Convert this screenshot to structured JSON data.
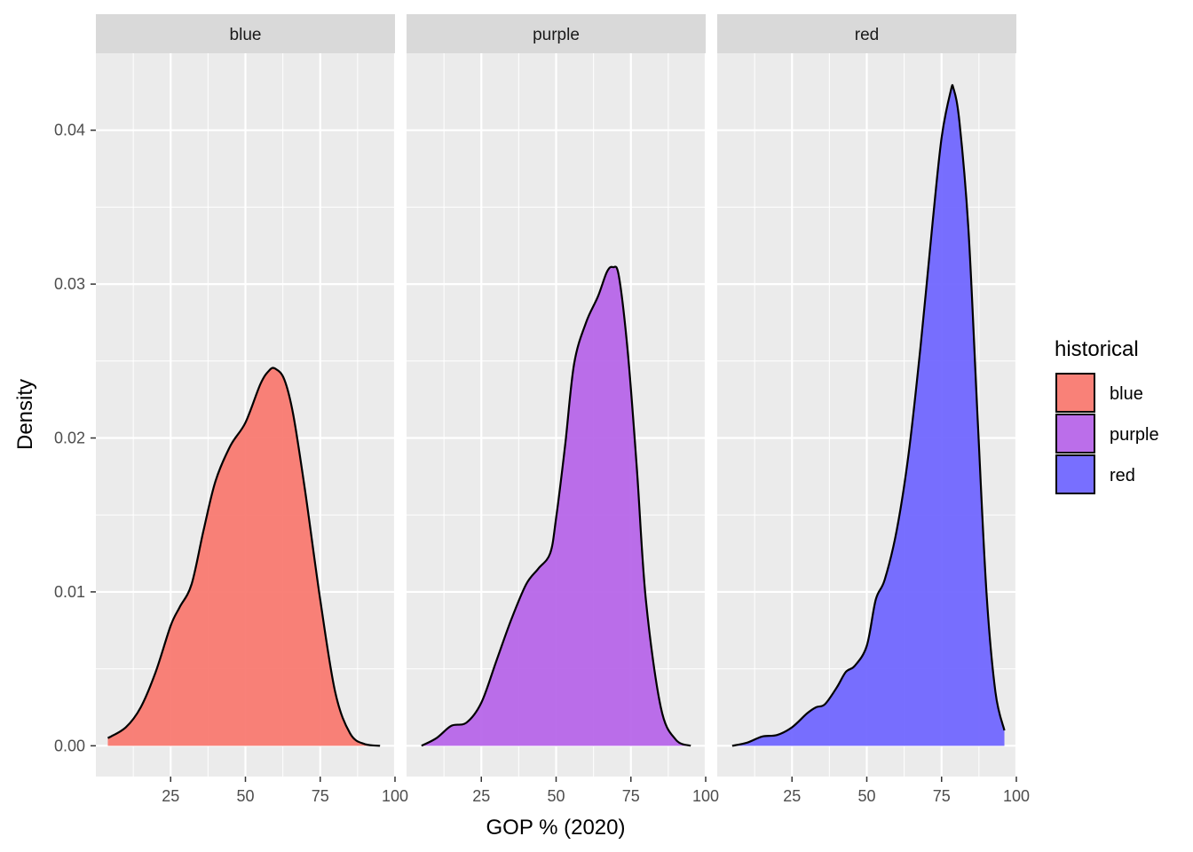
{
  "chart_data": {
    "type": "area",
    "subtype": "density",
    "facet_by": "historical",
    "xlabel": "GOP % (2020)",
    "ylabel": "Density",
    "xlim": [
      0,
      100
    ],
    "ylim": [
      -0.002,
      0.045
    ],
    "x_ticks": [
      25,
      50,
      75,
      100
    ],
    "x_tick_labels": [
      "25",
      "50",
      "75",
      "100"
    ],
    "y_ticks": [
      0.0,
      0.01,
      0.02,
      0.03,
      0.04
    ],
    "y_tick_labels": [
      "0.00",
      "0.01",
      "0.02",
      "0.03",
      "0.04"
    ],
    "grid": true,
    "legend": {
      "title": "historical",
      "placement": "right",
      "entries": [
        {
          "label": "blue",
          "color": "#F8766D"
        },
        {
          "label": "purple",
          "color": "#B562E8"
        },
        {
          "label": "red",
          "color": "#6C63FF"
        }
      ]
    },
    "panels": [
      {
        "strip": "blue",
        "color": "#F8766D",
        "x": [
          4,
          10,
          15,
          20,
          25,
          28,
          32,
          36,
          40,
          45,
          50,
          55,
          58,
          60,
          63,
          66,
          70,
          75,
          80,
          85,
          90,
          95
        ],
        "y": [
          0.0005,
          0.0012,
          0.0025,
          0.0048,
          0.0078,
          0.009,
          0.0105,
          0.014,
          0.0172,
          0.0195,
          0.021,
          0.0235,
          0.0244,
          0.0245,
          0.0238,
          0.0215,
          0.0165,
          0.0095,
          0.0035,
          0.0008,
          0.0001,
          0.0
        ]
      },
      {
        "strip": "purple",
        "color": "#B562E8",
        "x": [
          5,
          10,
          15,
          20,
          25,
          30,
          35,
          40,
          44,
          48,
          50,
          53,
          56,
          60,
          64,
          67,
          69,
          71,
          74,
          77,
          80,
          85,
          90,
          95
        ],
        "y": [
          0.0,
          0.0005,
          0.0013,
          0.0015,
          0.0028,
          0.0055,
          0.0082,
          0.0105,
          0.0115,
          0.0125,
          0.0148,
          0.0195,
          0.0248,
          0.0275,
          0.0292,
          0.0308,
          0.0311,
          0.0305,
          0.0255,
          0.018,
          0.0095,
          0.0025,
          0.0004,
          0.0
        ]
      },
      {
        "strip": "red",
        "color": "#6C63FF",
        "x": [
          5,
          10,
          15,
          20,
          25,
          30,
          33,
          36,
          40,
          43,
          46,
          50,
          53,
          56,
          60,
          64,
          68,
          72,
          75,
          78,
          79,
          81,
          84,
          87,
          90,
          93,
          96
        ],
        "y": [
          0.0,
          0.0002,
          0.0006,
          0.0007,
          0.0012,
          0.0021,
          0.0025,
          0.0027,
          0.0038,
          0.0048,
          0.0052,
          0.0065,
          0.0095,
          0.0108,
          0.014,
          0.019,
          0.026,
          0.034,
          0.0395,
          0.0425,
          0.0427,
          0.0405,
          0.0335,
          0.0215,
          0.01,
          0.0035,
          0.001
        ]
      }
    ]
  }
}
